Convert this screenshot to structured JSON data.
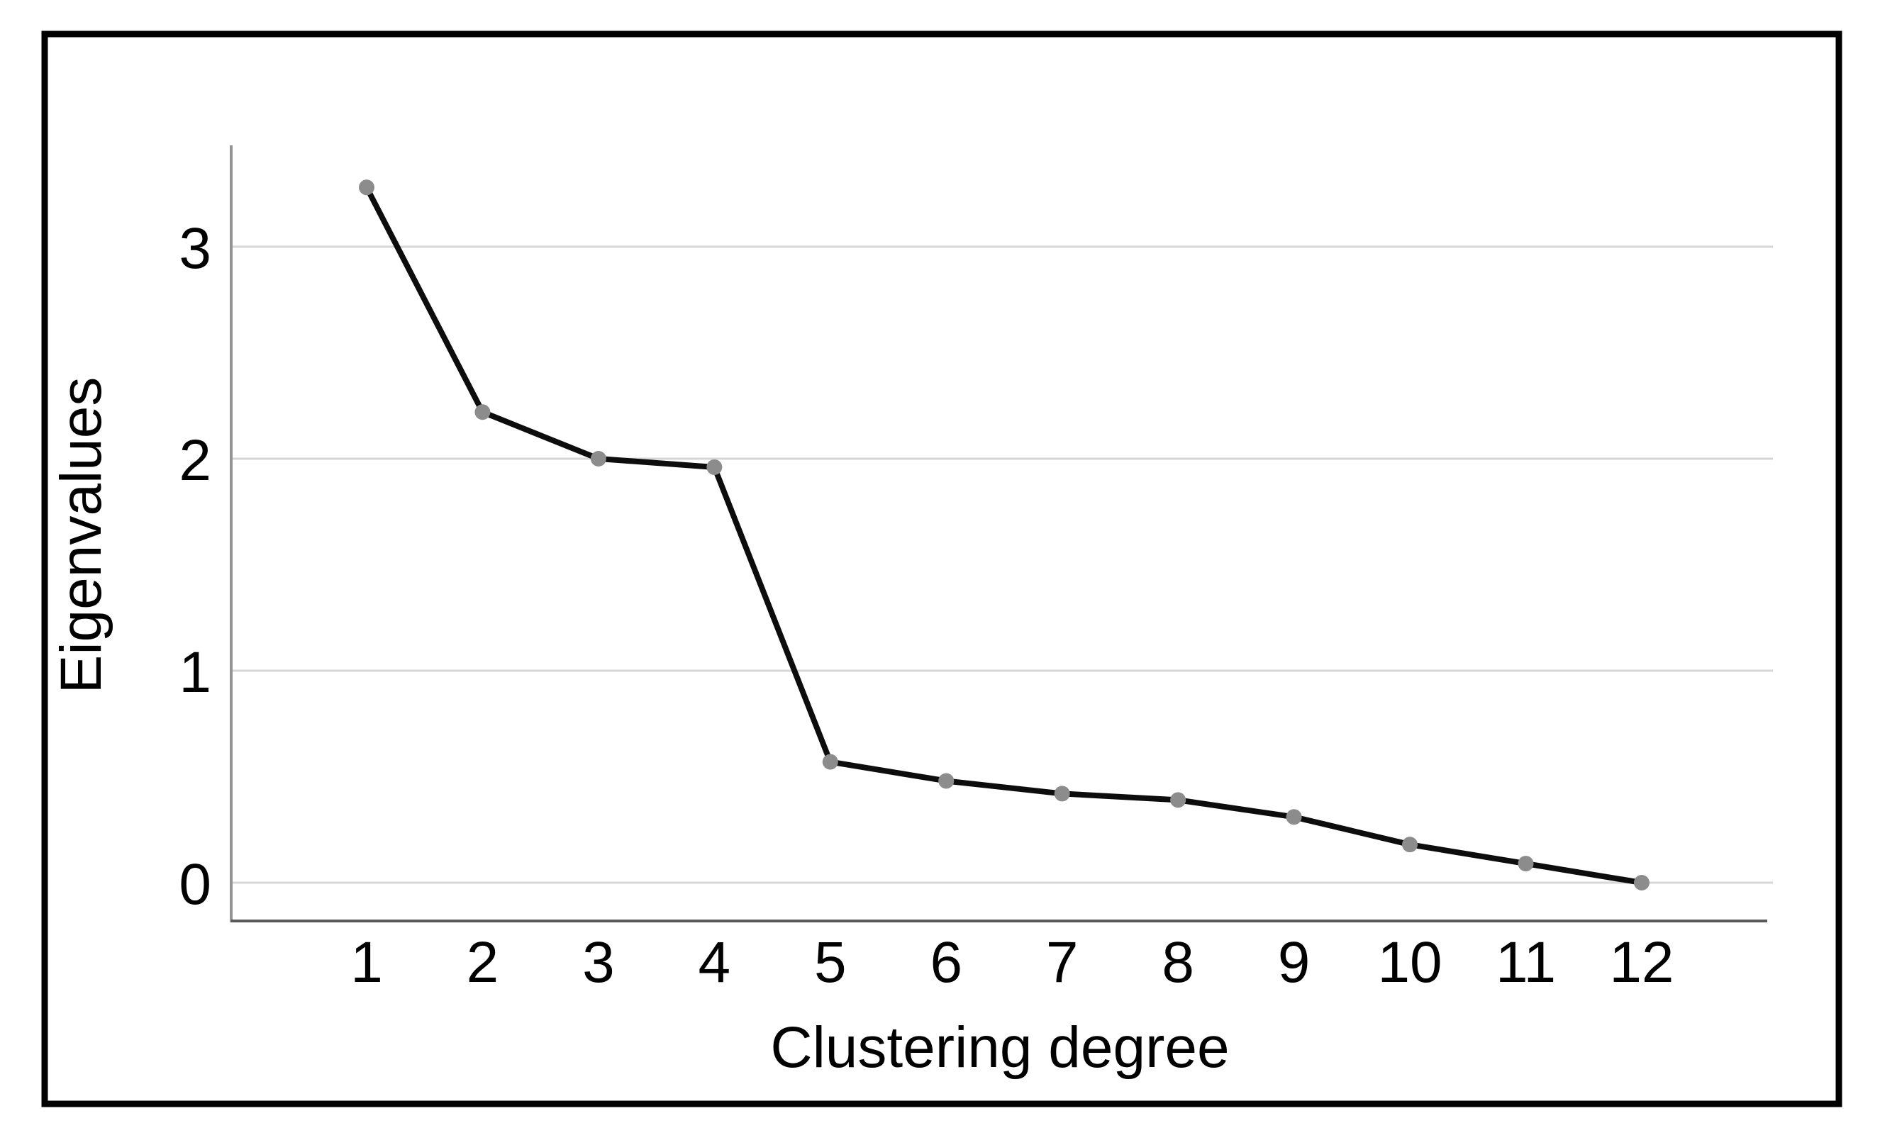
{
  "figure": {
    "background_color": "#ffffff",
    "border_color": "#000000"
  },
  "chart_data": {
    "type": "line",
    "title": "",
    "xlabel": "Clustering degree",
    "ylabel": "Eigenvalues",
    "x": [
      1,
      2,
      3,
      4,
      5,
      6,
      7,
      8,
      9,
      10,
      11,
      12
    ],
    "x_tick_labels": [
      "1",
      "2",
      "3",
      "4",
      "5",
      "6",
      "7",
      "8",
      "9",
      "10",
      "11",
      "12"
    ],
    "values": [
      3.28,
      2.22,
      2.0,
      1.96,
      0.57,
      0.48,
      0.42,
      0.39,
      0.31,
      0.18,
      0.09,
      0.0
    ],
    "y_ticks": [
      0,
      1,
      2,
      3
    ],
    "y_tick_labels": [
      "0",
      "1",
      "2",
      "3"
    ],
    "ylim": [
      -0.18,
      3.48
    ],
    "grid": "horizontal",
    "legend": "none",
    "line_color": "#0d0d0d",
    "marker_color": "#8c8c8c",
    "gridline_color": "#d6d6d6",
    "y_axis_line_color": "#949494",
    "x_axis_line_color": "#595959",
    "text_color": "#000000"
  }
}
